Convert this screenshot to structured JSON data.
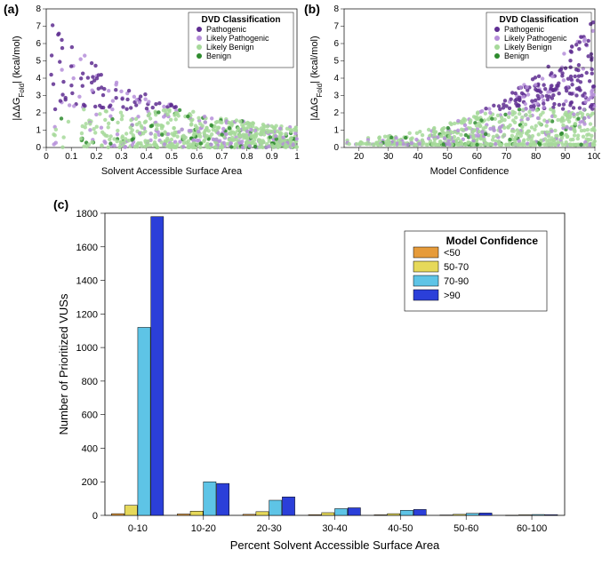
{
  "panel_a": {
    "label": "(a)",
    "type": "scatter",
    "xlabel": "Solvent Accessible Surface Area",
    "ylabel": "|ΔΔG_Fold| (kcal/mol)",
    "xlim": [
      0,
      1
    ],
    "ylim": [
      0,
      8
    ],
    "xticks": [
      0,
      0.1,
      0.2,
      0.3,
      0.4,
      0.5,
      0.6,
      0.7,
      0.8,
      0.9,
      1
    ],
    "yticks": [
      0,
      1,
      2,
      3,
      4,
      5,
      6,
      7,
      8
    ],
    "label_fontsize": 11,
    "tick_fontsize": 10,
    "bg_color": "#ffffff",
    "axis_color": "#000000",
    "legend_title": "DVD Classification",
    "legend_items": [
      {
        "label": "Pathogenic",
        "color": "#5e2d91"
      },
      {
        "label": "Likely Pathogenic",
        "color": "#b58ed9"
      },
      {
        "label": "Likely Benign",
        "color": "#a6d99a"
      },
      {
        "label": "Benign",
        "color": "#2e8b2e"
      }
    ],
    "marker_size": 2.2,
    "n_points": 800
  },
  "panel_b": {
    "label": "(b)",
    "type": "scatter",
    "xlabel": "Model Confidence",
    "ylabel": "|ΔΔG_Fold| (kcal/mol)",
    "xlim": [
      15,
      100
    ],
    "ylim": [
      0,
      8
    ],
    "xticks": [
      20,
      30,
      40,
      50,
      60,
      70,
      80,
      90,
      100
    ],
    "yticks": [
      0,
      1,
      2,
      3,
      4,
      5,
      6,
      7,
      8
    ],
    "label_fontsize": 11,
    "tick_fontsize": 10,
    "bg_color": "#ffffff",
    "axis_color": "#000000",
    "legend_title": "DVD Classification",
    "legend_items": [
      {
        "label": "Pathogenic",
        "color": "#5e2d91"
      },
      {
        "label": "Likely Pathogenic",
        "color": "#b58ed9"
      },
      {
        "label": "Likely Benign",
        "color": "#a6d99a"
      },
      {
        "label": "Benign",
        "color": "#2e8b2e"
      }
    ],
    "marker_size": 2.2,
    "n_points": 900
  },
  "panel_c": {
    "label": "(c)",
    "type": "bar",
    "xlabel": "Percent Solvent Accessible Surface Area",
    "ylabel": "Number of Prioritized VUSs",
    "categories": [
      "0-10",
      "10-20",
      "20-30",
      "30-40",
      "40-50",
      "50-60",
      "60-100"
    ],
    "series": [
      {
        "label": "<50",
        "color": "#e69b3a",
        "values": [
          10,
          8,
          6,
          4,
          3,
          2,
          1
        ]
      },
      {
        "label": "50-70",
        "color": "#e6d95a",
        "values": [
          60,
          25,
          22,
          16,
          10,
          6,
          3
        ]
      },
      {
        "label": "70-90",
        "color": "#5ec4e6",
        "values": [
          1120,
          200,
          90,
          40,
          30,
          12,
          5
        ]
      },
      {
        "label": ">90",
        "color": "#2b3fd9",
        "values": [
          1780,
          190,
          110,
          45,
          35,
          14,
          4
        ]
      }
    ],
    "ylim": [
      0,
      1800
    ],
    "yticks": [
      0,
      200,
      400,
      600,
      800,
      1000,
      1200,
      1400,
      1600,
      1800
    ],
    "label_fontsize": 13,
    "tick_fontsize": 11,
    "legend_title": "Model Confidence",
    "bar_group_width": 0.8,
    "bar_edge_color": "#000000",
    "bg_color": "#ffffff",
    "axis_color": "#000000"
  }
}
